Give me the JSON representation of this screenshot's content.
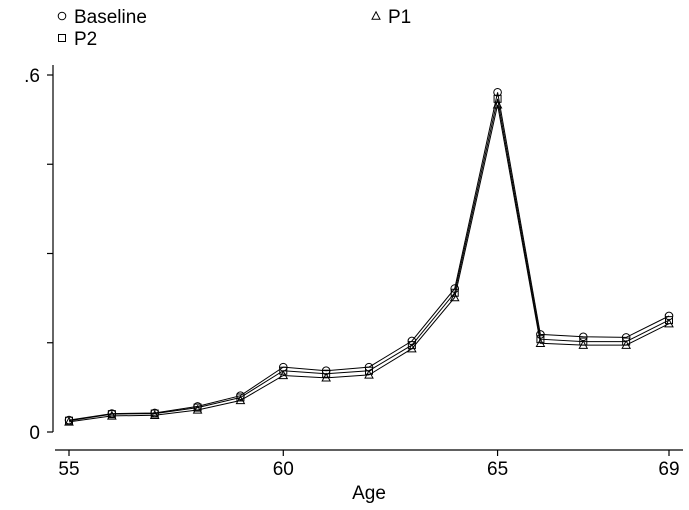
{
  "chart_data": {
    "type": "line",
    "xlabel": "Age",
    "ylabel": "",
    "xlim": [
      55,
      69
    ],
    "ylim": [
      0,
      0.6
    ],
    "x_ticks": [
      55,
      60,
      65,
      69
    ],
    "x_tick_labels": [
      "55",
      "60",
      "65",
      "69"
    ],
    "y_ticks": [
      0,
      0.15,
      0.3,
      0.45,
      0.6
    ],
    "y_tick_labels": [
      "0",
      "",
      "",
      "",
      ".6"
    ],
    "grid": false,
    "legend_position": "top-left",
    "x": [
      55,
      56,
      57,
      58,
      59,
      60,
      61,
      62,
      63,
      64,
      65,
      66,
      67,
      68,
      69
    ],
    "series": [
      {
        "name": "Baseline",
        "marker": "circle",
        "values": [
          0.02,
          0.031,
          0.032,
          0.043,
          0.061,
          0.109,
          0.103,
          0.109,
          0.153,
          0.241,
          0.571,
          0.164,
          0.16,
          0.159,
          0.195
        ]
      },
      {
        "name": "P1",
        "marker": "triangle",
        "values": [
          0.017,
          0.027,
          0.028,
          0.037,
          0.053,
          0.095,
          0.091,
          0.096,
          0.14,
          0.226,
          0.55,
          0.149,
          0.146,
          0.146,
          0.182
        ]
      },
      {
        "name": "P2",
        "marker": "square",
        "values": [
          0.019,
          0.03,
          0.031,
          0.041,
          0.058,
          0.103,
          0.098,
          0.103,
          0.146,
          0.234,
          0.56,
          0.156,
          0.152,
          0.152,
          0.188
        ]
      }
    ],
    "line_color": "#000000"
  }
}
